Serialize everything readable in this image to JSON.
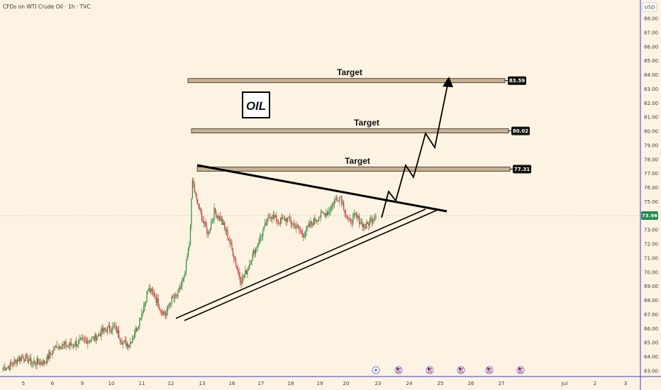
{
  "chart_data": {
    "type": "candlestick",
    "title": "CFDs on WTI Crude Oil · 1h · TVC",
    "currency": "USD",
    "annotation_title": "OIL",
    "last_price": "73.96",
    "y_ticks": [
      "88.00",
      "87.00",
      "86.00",
      "85.00",
      "84.00",
      "83.00",
      "82.00",
      "81.00",
      "80.00",
      "79.00",
      "78.00",
      "77.00",
      "76.00",
      "75.00",
      "74.00",
      "73.00",
      "72.00",
      "71.00",
      "70.00",
      "69.00",
      "68.00",
      "67.00",
      "66.00",
      "65.00",
      "64.00",
      "63.00"
    ],
    "x_ticks": [
      "5",
      "6",
      "9",
      "10",
      "11",
      "12",
      "13",
      "16",
      "17",
      "18",
      "19",
      "20",
      "23",
      "24",
      "25",
      "26",
      "27",
      "Jul",
      "2",
      "3"
    ],
    "targets": [
      {
        "label": "Target",
        "price": "83.59"
      },
      {
        "label": "Target",
        "price": "80.02"
      },
      {
        "label": "Target",
        "price": "77.31"
      }
    ],
    "trend_keypoints": [
      [
        0,
        63.2
      ],
      [
        6,
        63.3
      ],
      [
        14,
        63.8
      ],
      [
        20,
        64.0
      ],
      [
        28,
        63.6
      ],
      [
        40,
        63.6
      ],
      [
        52,
        64.8
      ],
      [
        64,
        64.8
      ],
      [
        76,
        65.1
      ],
      [
        88,
        65.3
      ],
      [
        96,
        65.8
      ],
      [
        102,
        66.0
      ],
      [
        108,
        66.1
      ],
      [
        116,
        65.0
      ],
      [
        122,
        64.9
      ],
      [
        130,
        66.2
      ],
      [
        136,
        67.6
      ],
      [
        140,
        68.8
      ],
      [
        146,
        68.4
      ],
      [
        152,
        67.4
      ],
      [
        157,
        67.0
      ],
      [
        162,
        68.0
      ],
      [
        168,
        68.3
      ],
      [
        175,
        69.6
      ],
      [
        180,
        72.0
      ],
      [
        183,
        76.5
      ],
      [
        187,
        75.0
      ],
      [
        192,
        73.9
      ],
      [
        198,
        72.7
      ],
      [
        204,
        74.3
      ],
      [
        210,
        73.8
      ],
      [
        216,
        72.8
      ],
      [
        222,
        71.4
      ],
      [
        227,
        70.0
      ],
      [
        230,
        69.4
      ],
      [
        236,
        70.2
      ],
      [
        242,
        71.4
      ],
      [
        250,
        72.7
      ],
      [
        258,
        74.1
      ],
      [
        266,
        73.6
      ],
      [
        274,
        73.8
      ],
      [
        282,
        73.3
      ],
      [
        290,
        72.7
      ],
      [
        298,
        73.5
      ],
      [
        306,
        74.0
      ],
      [
        314,
        74.3
      ],
      [
        320,
        75.1
      ],
      [
        326,
        75.4
      ],
      [
        329,
        74.6
      ],
      [
        334,
        73.5
      ],
      [
        340,
        74.0
      ],
      [
        346,
        73.5
      ],
      [
        350,
        73.2
      ],
      [
        356,
        73.8
      ],
      [
        360,
        73.96
      ]
    ],
    "ylim": [
      62.8,
      88.4
    ]
  }
}
